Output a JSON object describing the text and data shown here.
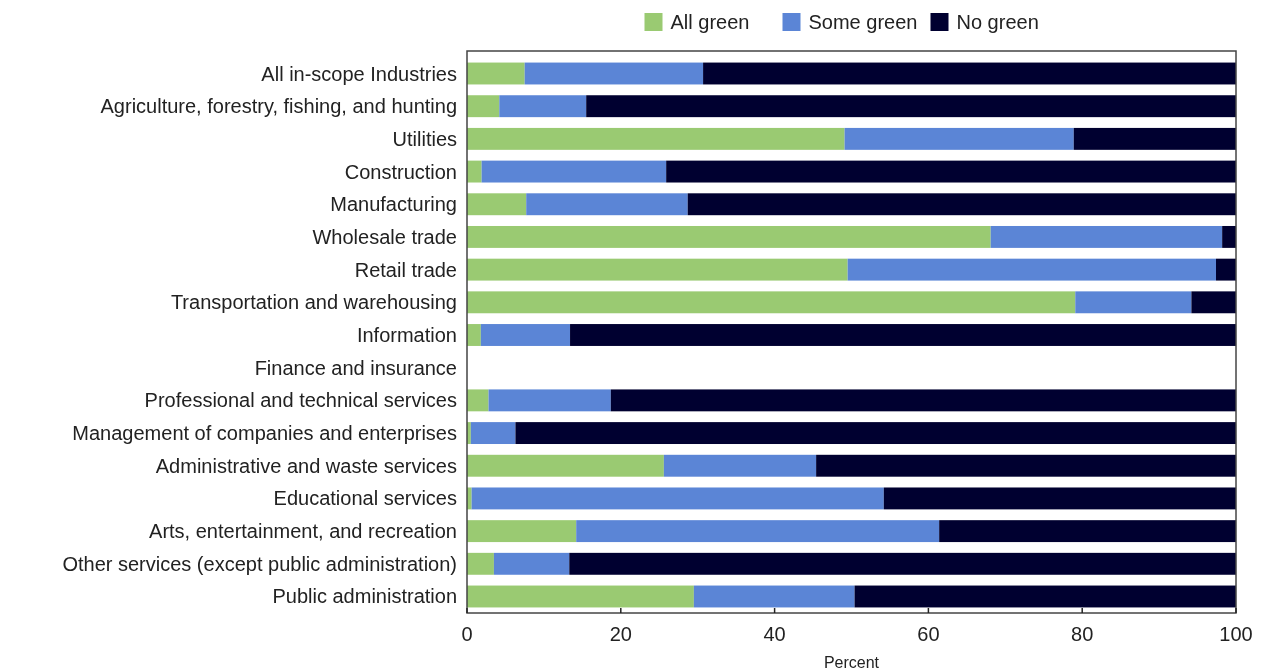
{
  "chart_data": {
    "type": "bar",
    "orientation": "horizontal",
    "stacked": true,
    "categories": [
      "All in-scope Industries",
      "Agriculture, forestry, fishing, and hunting",
      "Utilities",
      "Construction",
      "Manufacturing",
      "Wholesale trade",
      "Retail trade",
      "Transportation and warehousing",
      "Information",
      "Finance and insurance",
      "Professional and technical services",
      "Management of companies and enterprises",
      "Administrative and waste services",
      "Educational services",
      "Arts, entertainment, and recreation",
      "Other services (except public administration)",
      "Public administration"
    ],
    "series": [
      {
        "name": "All green",
        "color": "#9aca72",
        "values": [
          7.5,
          4.2,
          49.1,
          1.9,
          7.7,
          68.1,
          49.5,
          79.1,
          1.8,
          null,
          2.8,
          0.5,
          25.6,
          0.6,
          14.2,
          3.5,
          29.5
        ]
      },
      {
        "name": "Some green",
        "color": "#5b85d6",
        "values": [
          23.2,
          11.3,
          29.8,
          24.0,
          21.0,
          30.1,
          47.9,
          15.1,
          11.6,
          null,
          15.9,
          5.8,
          19.8,
          53.6,
          47.2,
          9.8,
          20.9
        ]
      },
      {
        "name": "No green",
        "color": "#000030",
        "values": [
          69.3,
          84.5,
          21.1,
          74.1,
          71.3,
          1.8,
          2.6,
          5.8,
          86.6,
          null,
          81.3,
          93.7,
          54.6,
          45.8,
          38.6,
          86.7,
          49.6
        ]
      }
    ],
    "xlim": [
      0,
      100
    ],
    "xticks": [
      0,
      20,
      40,
      60,
      80,
      100
    ],
    "xlabel": "Percent",
    "legend": "top",
    "grid": false
  }
}
